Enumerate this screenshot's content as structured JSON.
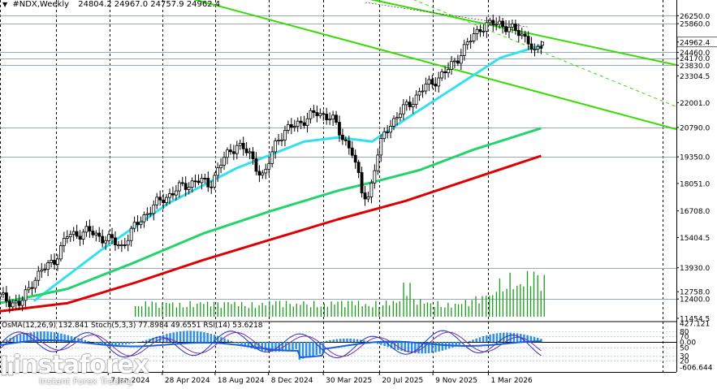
{
  "header": {
    "symbol": "#NDX,Weekly",
    "ohlc": "24804.2 24967.0 24757.9 24962.4"
  },
  "indicator_header": "OsMA(12,26,9) 132.841  Stoch(5,3,3) 77.8984 49.6551  RSI(14) 53.6218",
  "logo": {
    "brand": "instaforex",
    "tagline": "Instant Forex Trading"
  },
  "colors": {
    "candle": "#000000",
    "ema_fast": "#33e0ee",
    "ema_mid": "#22d46a",
    "ema_slow": "#e00000",
    "channel": "#33dd00",
    "volume": "#1a9a1a",
    "osma": "#2f8fe0",
    "stoch_main": "#1a2fbf",
    "stoch_signal": "#7a2aa0",
    "rsi": "#1a5fdc",
    "level_line": "#b8c8d8"
  },
  "chart_data": {
    "type": "candlestick",
    "symbol": "#NDX",
    "timeframe": "Weekly",
    "last_bar": {
      "open": 24804.2,
      "high": 24967.0,
      "low": 24757.9,
      "close": 24962.4
    },
    "price_axis_labels": [
      "26250.0",
      "25860.0",
      "24962.4",
      "24460.0",
      "24170.0",
      "23830.0",
      "23304.5",
      "22001.0",
      "20790.0",
      "19350.0",
      "18051.0",
      "16708.0",
      "15404.5",
      "13930.0",
      "12758.0",
      "12400.0",
      "11454.5"
    ],
    "horizontal_levels": [
      26250,
      25860,
      24460,
      24170,
      23830,
      20790,
      19350,
      13930,
      12400
    ],
    "x_axis_labels": [
      "7 Jan 2024",
      "28 Apr 2024",
      "18 Aug 2024",
      "8 Dec 2024",
      "30 Mar 2025",
      "20 Jul 2025",
      "9 Nov 2025",
      "1 Mar 2026"
    ],
    "ylim": [
      11454.5,
      26700
    ],
    "price_path": [
      [
        0,
        12500
      ],
      [
        0.03,
        12100
      ],
      [
        0.05,
        13400
      ],
      [
        0.08,
        14300
      ],
      [
        0.1,
        15500
      ],
      [
        0.13,
        15700
      ],
      [
        0.16,
        15300
      ],
      [
        0.18,
        15000
      ],
      [
        0.21,
        16400
      ],
      [
        0.24,
        17300
      ],
      [
        0.27,
        17900
      ],
      [
        0.29,
        18200
      ],
      [
        0.31,
        18000
      ],
      [
        0.33,
        19200
      ],
      [
        0.35,
        20000
      ],
      [
        0.37,
        19400
      ],
      [
        0.39,
        18300
      ],
      [
        0.41,
        20300
      ],
      [
        0.44,
        21000
      ],
      [
        0.47,
        21500
      ],
      [
        0.49,
        21300
      ],
      [
        0.5,
        20600
      ],
      [
        0.52,
        19700
      ],
      [
        0.535,
        17600
      ],
      [
        0.545,
        17400
      ],
      [
        0.555,
        19000
      ],
      [
        0.57,
        20700
      ],
      [
        0.6,
        21800
      ],
      [
        0.63,
        22800
      ],
      [
        0.66,
        23500
      ],
      [
        0.69,
        24800
      ],
      [
        0.71,
        25700
      ],
      [
        0.74,
        25900
      ],
      [
        0.76,
        25500
      ],
      [
        0.78,
        25200
      ],
      [
        0.79,
        24300
      ],
      [
        0.8,
        24800
      ]
    ],
    "moving_averages": [
      {
        "color": "cyan",
        "path": [
          [
            0.05,
            12300
          ],
          [
            0.15,
            14800
          ],
          [
            0.25,
            17100
          ],
          [
            0.35,
            18800
          ],
          [
            0.45,
            20100
          ],
          [
            0.5,
            20300
          ],
          [
            0.55,
            20100
          ],
          [
            0.6,
            21200
          ],
          [
            0.67,
            22700
          ],
          [
            0.74,
            24200
          ],
          [
            0.8,
            24800
          ]
        ]
      },
      {
        "color": "green",
        "path": [
          [
            0.0,
            12200
          ],
          [
            0.1,
            12900
          ],
          [
            0.2,
            14200
          ],
          [
            0.3,
            15600
          ],
          [
            0.4,
            16700
          ],
          [
            0.5,
            17700
          ],
          [
            0.55,
            18100
          ],
          [
            0.62,
            18700
          ],
          [
            0.7,
            19700
          ],
          [
            0.8,
            20750
          ]
        ]
      },
      {
        "color": "red",
        "path": [
          [
            0.0,
            11800
          ],
          [
            0.1,
            12200
          ],
          [
            0.2,
            13200
          ],
          [
            0.3,
            14300
          ],
          [
            0.4,
            15300
          ],
          [
            0.5,
            16300
          ],
          [
            0.6,
            17200
          ],
          [
            0.7,
            18300
          ],
          [
            0.8,
            19400
          ]
        ]
      }
    ],
    "trend_channel": {
      "upper": [
        [
          0.4,
          28100
        ],
        [
          1.02,
          23700
        ]
      ],
      "lower": [
        [
          0.18,
          28000
        ],
        [
          1.0,
          20700
        ]
      ],
      "middle_dashed": [
        [
          0.54,
          28000
        ],
        [
          1.0,
          21800
        ]
      ]
    },
    "volume": [
      1,
      1.2,
      1.1,
      1.3,
      1.1,
      1.2,
      1.3,
      1.2,
      1.1,
      1.3,
      1.2,
      1.1,
      1.2,
      1.3,
      1.2,
      1.1,
      1.3,
      1.2,
      1.1,
      1.3,
      1.2,
      1.3,
      1.1,
      1.2,
      1.3,
      1.4,
      2.6,
      1.4,
      1.3,
      1.2,
      1.1,
      1.2,
      1.3,
      1.6,
      2.0,
      3.0,
      3.4,
      3.0,
      3.6,
      3.2
    ],
    "indicator_panel": {
      "osma": 132.841,
      "stoch_main": 77.8984,
      "stoch_signal": 49.6551,
      "rsi": 53.6218,
      "axis_labels": [
        "427.121",
        "80",
        "70",
        "0.00",
        "50",
        "30",
        "20",
        "-606.644"
      ]
    }
  }
}
